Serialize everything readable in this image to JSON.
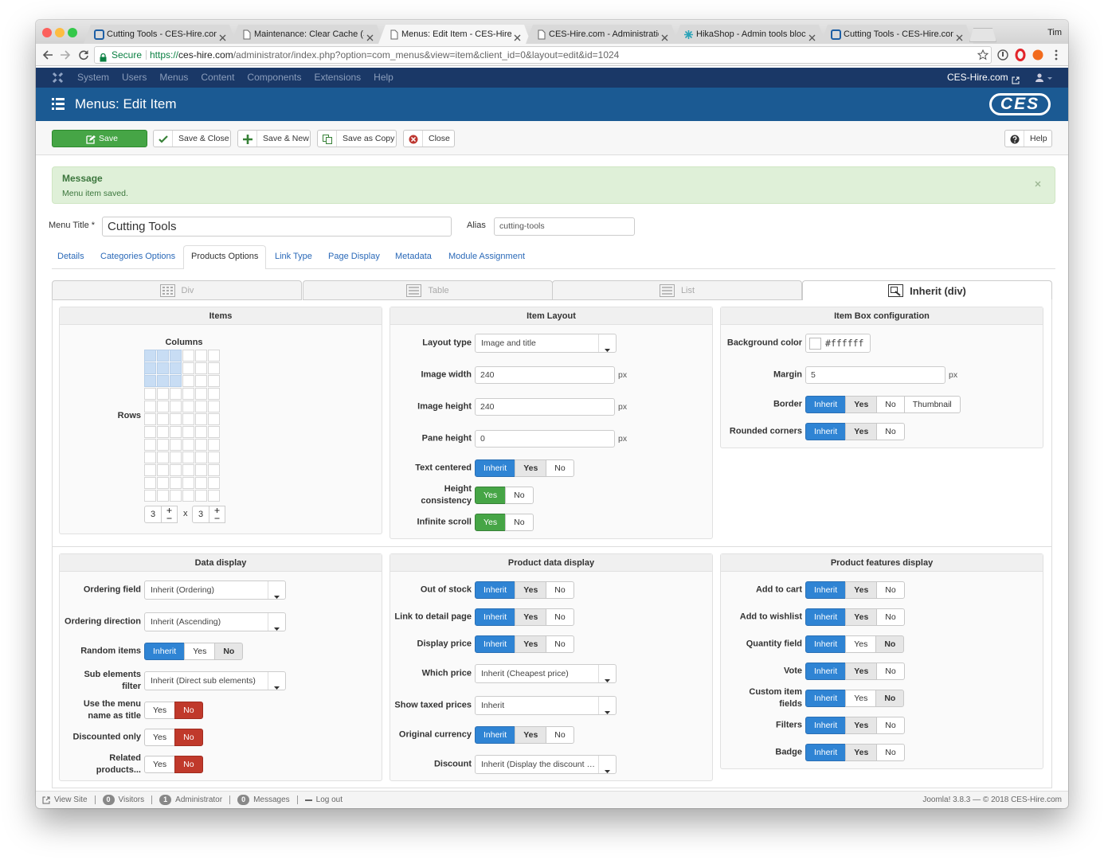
{
  "browser": {
    "tabs": [
      "Cutting Tools - CES-Hire.com",
      "Maintenance: Clear Cache (Sit",
      "Menus: Edit Item - CES-Hire.c",
      "CES-Hire.com - Administration",
      "HikaShop - Admin tools blocks",
      "Cutting Tools - CES-Hire.com"
    ],
    "active_tab": 2,
    "user": "Tim",
    "secure": "Secure",
    "url_scheme": "https://",
    "url_host": "ces-hire.com",
    "url_path": "/administrator/index.php?option=com_menus&view=item&client_id=0&layout=edit&id=1024"
  },
  "admin_menu": {
    "items": [
      "System",
      "Users",
      "Menus",
      "Content",
      "Components",
      "Extensions",
      "Help"
    ],
    "site_link": "CES-Hire.com"
  },
  "header": {
    "title": "Menus: Edit Item",
    "logo": "CES"
  },
  "toolbar": {
    "buttons": [
      "Save",
      "Save & Close",
      "Save & New",
      "Save as Copy",
      "Close"
    ],
    "help": "Help"
  },
  "message": {
    "title": "Message",
    "text": "Menu item saved."
  },
  "form": {
    "title_label": "Menu Title *",
    "title_value": "Cutting Tools",
    "alias_label": "Alias",
    "alias_value": "cutting-tools"
  },
  "tabs": {
    "items": [
      "Details",
      "Categories Options",
      "Products Options",
      "Link Type",
      "Page Display",
      "Metadata",
      "Module Assignment"
    ],
    "active": 2
  },
  "layout_tabs": {
    "items": [
      "Div",
      "Table",
      "List",
      "Inherit (div)"
    ],
    "active": 3
  },
  "items_panel": {
    "title": "Items",
    "columns_label": "Columns",
    "rows_label": "Rows",
    "columns": 3,
    "separator": "x",
    "rows": 3
  },
  "panels": [
    {
      "title": "Item Layout",
      "rows": [
        {
          "label": "Layout type",
          "select": "Image and title"
        },
        {
          "label": "Image width",
          "input": 240,
          "unit": "px"
        },
        {
          "label": "Image height",
          "input": 240,
          "unit": "px"
        },
        {
          "label": "Pane height",
          "input": 0,
          "unit": "px"
        },
        {
          "label": "Text centered",
          "options": [
            "Inherit",
            "Yes",
            "No"
          ],
          "selected": 0,
          "tone": "blue",
          "default": 1
        },
        {
          "label": "Height consistency",
          "options": [
            "Yes",
            "No"
          ],
          "selected": 0,
          "tone": "green"
        },
        {
          "label": "Infinite scroll",
          "options": [
            "Yes",
            "No"
          ],
          "selected": 0,
          "tone": "green"
        }
      ]
    },
    {
      "title": "Item Box configuration",
      "rows": [
        {
          "label": "Background color",
          "color": "#ffffff"
        },
        {
          "label": "Margin",
          "input": 5,
          "unit": "px"
        },
        {
          "label": "Border",
          "options": [
            "Inherit",
            "Yes",
            "No",
            "Thumbnail"
          ],
          "selected": 0,
          "tone": "blue",
          "default": 1
        },
        {
          "label": "Rounded corners",
          "options": [
            "Inherit",
            "Yes",
            "No"
          ],
          "selected": 0,
          "tone": "blue",
          "default": 1
        }
      ]
    },
    {
      "title": "Data display",
      "rows": [
        {
          "label": "Ordering field",
          "select": "Inherit (Ordering)"
        },
        {
          "label": "Ordering direction",
          "select": "Inherit (Ascending)"
        },
        {
          "label": "Random items",
          "options": [
            "Inherit",
            "Yes",
            "No"
          ],
          "selected": 0,
          "tone": "blue",
          "default": 2
        },
        {
          "label": "Sub elements filter",
          "select": "Inherit (Direct sub elements)"
        },
        {
          "label": "Use the menu name as title",
          "options": [
            "Yes",
            "No"
          ],
          "selected": 1,
          "tone": "red"
        },
        {
          "label": "Discounted only",
          "options": [
            "Yes",
            "No"
          ],
          "selected": 1,
          "tone": "red"
        },
        {
          "label": "Related products...",
          "options": [
            "Yes",
            "No"
          ],
          "selected": 1,
          "tone": "red"
        }
      ]
    },
    {
      "title": "Product data display",
      "rows": [
        {
          "label": "Out of stock",
          "options": [
            "Inherit",
            "Yes",
            "No"
          ],
          "selected": 0,
          "tone": "blue",
          "default": 1
        },
        {
          "label": "Link to detail page",
          "options": [
            "Inherit",
            "Yes",
            "No"
          ],
          "selected": 0,
          "tone": "blue",
          "default": 1
        },
        {
          "label": "Display price",
          "options": [
            "Inherit",
            "Yes",
            "No"
          ],
          "selected": 0,
          "tone": "blue",
          "default": 1
        },
        {
          "label": "Which price",
          "select": "Inherit (Cheapest price)"
        },
        {
          "label": "Show taxed prices",
          "select": "Inherit"
        },
        {
          "label": "Original currency",
          "options": [
            "Inherit",
            "Yes",
            "No"
          ],
          "selected": 0,
          "tone": "blue",
          "default": 1
        },
        {
          "label": "Discount",
          "select": "Inherit (Display the discount …"
        }
      ]
    },
    {
      "title": "Product features display",
      "rows": [
        {
          "label": "Add to cart",
          "options": [
            "Inherit",
            "Yes",
            "No"
          ],
          "selected": 0,
          "tone": "blue",
          "default": 1
        },
        {
          "label": "Add to wishlist",
          "options": [
            "Inherit",
            "Yes",
            "No"
          ],
          "selected": 0,
          "tone": "blue",
          "default": 1
        },
        {
          "label": "Quantity field",
          "options": [
            "Inherit",
            "Yes",
            "No"
          ],
          "selected": 0,
          "tone": "blue",
          "default": 2
        },
        {
          "label": "Vote",
          "options": [
            "Inherit",
            "Yes",
            "No"
          ],
          "selected": 0,
          "tone": "blue",
          "default": 1
        },
        {
          "label": "Custom item fields",
          "options": [
            "Inherit",
            "Yes",
            "No"
          ],
          "selected": 0,
          "tone": "blue",
          "default": 2
        },
        {
          "label": "Filters",
          "options": [
            "Inherit",
            "Yes",
            "No"
          ],
          "selected": 0,
          "tone": "blue",
          "default": 1
        },
        {
          "label": "Badge",
          "options": [
            "Inherit",
            "Yes",
            "No"
          ],
          "selected": 0,
          "tone": "blue",
          "default": 1
        }
      ]
    }
  ],
  "footer": {
    "view_site": "View Site",
    "visitors_count": 0,
    "visitors": "Visitors",
    "admins_count": 1,
    "admins": "Administrator",
    "messages_count": 0,
    "messages": "Messages",
    "logout": "Log out",
    "credits": "Joomla! 3.8.3 — © 2018 CES-Hire.com"
  }
}
